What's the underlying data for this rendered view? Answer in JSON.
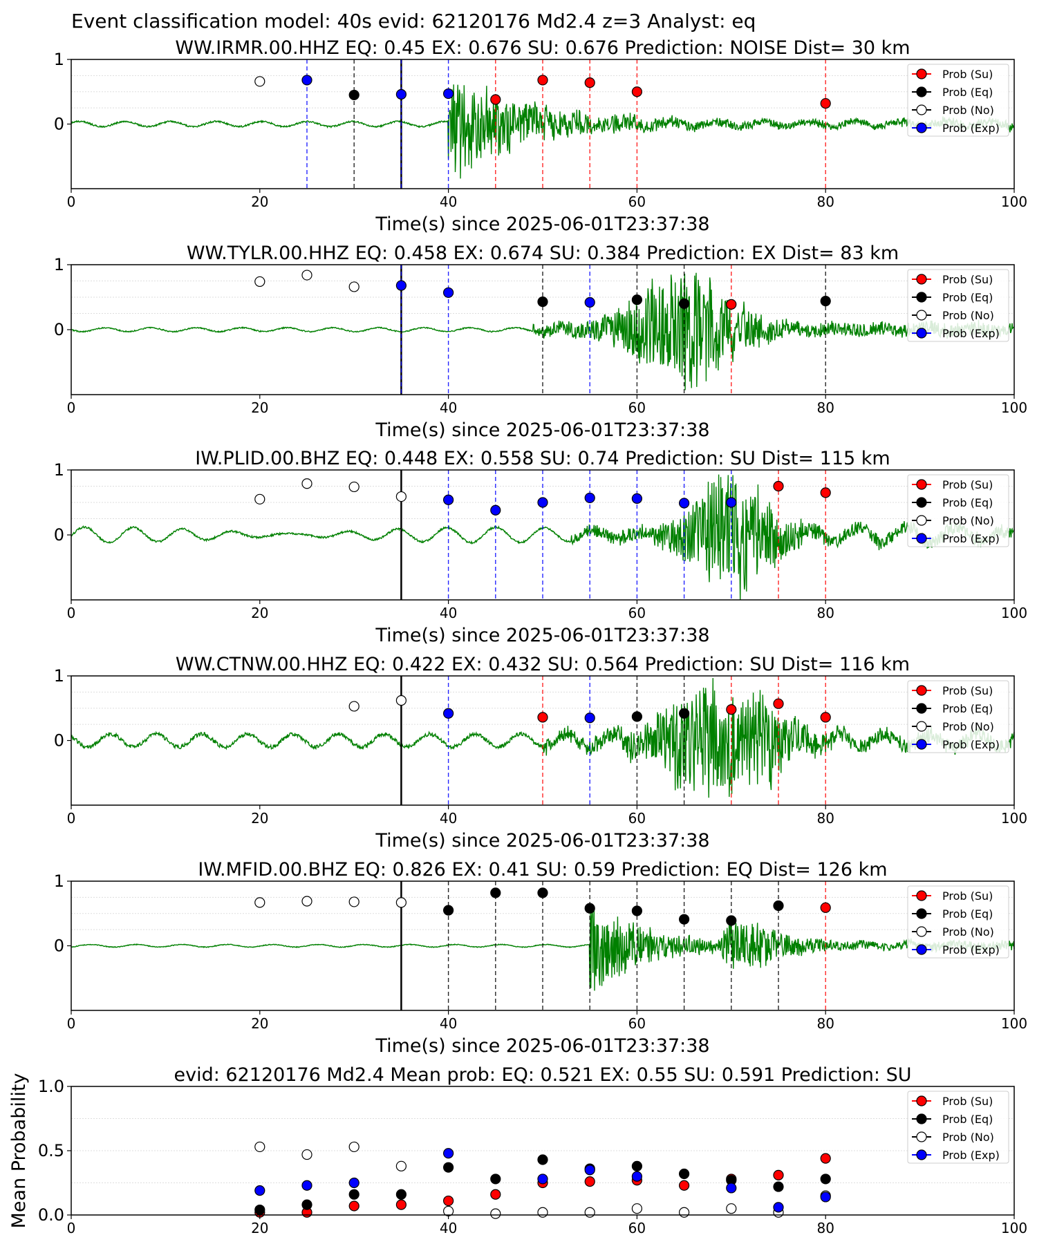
{
  "figure": {
    "title": "Event classification model: 40s evid: 62120176 Md2.4 z=3 Analyst: eq",
    "colors": {
      "su": "#ff0000",
      "eq": "#000000",
      "no": "#ffffff",
      "exp": "#0000ff",
      "waveform": "#008000",
      "su_line": "#ff0000",
      "eq_line": "#000000",
      "exp_line": "#0000ff",
      "origin_line": "#000000"
    }
  },
  "chart_data": [
    {
      "type": "scatter",
      "title": "WW.IRMR.00.HHZ   EQ: 0.45   EX: 0.676   SU: 0.676   Prediction: NOISE    Dist= 30 km",
      "xlabel": "Time(s) since 2025-06-01T23:37:38",
      "xlim": [
        0,
        100
      ],
      "ylim": [
        -1,
        1
      ],
      "xticks": [
        "0",
        "20",
        "40",
        "60",
        "80",
        "100"
      ],
      "yticks": [
        "1",
        "0"
      ],
      "legend": [
        "Prob (Su)",
        "Prob (Eq)",
        "Prob (No)",
        "Prob (Exp)"
      ],
      "legend_position": "top-right",
      "origin_time": 35,
      "waveform": {
        "style": "noise-then-burst",
        "onset": 40,
        "amp": 0.95,
        "pre_amp": 0.04,
        "decay": 8
      },
      "points": [
        {
          "x": 20,
          "y": 0.66,
          "class": "No"
        },
        {
          "x": 25,
          "y": 0.68,
          "class": "Exp"
        },
        {
          "x": 30,
          "y": 0.45,
          "class": "Eq"
        },
        {
          "x": 35,
          "y": 0.46,
          "class": "Exp"
        },
        {
          "x": 40,
          "y": 0.47,
          "class": "Exp"
        },
        {
          "x": 45,
          "y": 0.38,
          "class": "Su"
        },
        {
          "x": 50,
          "y": 0.68,
          "class": "Su"
        },
        {
          "x": 55,
          "y": 0.64,
          "class": "Su"
        },
        {
          "x": 60,
          "y": 0.5,
          "class": "Su"
        },
        {
          "x": 80,
          "y": 0.32,
          "class": "Su"
        }
      ]
    },
    {
      "type": "scatter",
      "title": "WW.TYLR.00.HHZ   EQ: 0.458   EX: 0.674   SU: 0.384   Prediction: EX    Dist= 83 km",
      "xlabel": "Time(s) since 2025-06-01T23:37:38",
      "xlim": [
        0,
        100
      ],
      "ylim": [
        -1,
        1
      ],
      "xticks": [
        "0",
        "20",
        "40",
        "60",
        "80",
        "100"
      ],
      "yticks": [
        "1",
        "0"
      ],
      "legend": [
        "Prob (Su)",
        "Prob (Eq)",
        "Prob (No)",
        "Prob (Exp)"
      ],
      "legend_position": "top-right",
      "origin_time": 35,
      "waveform": {
        "style": "emergent",
        "onset": 49,
        "amp": 1.0,
        "pre_amp": 0.03,
        "peak": 65,
        "decay": 6
      },
      "points": [
        {
          "x": 20,
          "y": 0.74,
          "class": "No"
        },
        {
          "x": 25,
          "y": 0.84,
          "class": "No"
        },
        {
          "x": 30,
          "y": 0.66,
          "class": "No"
        },
        {
          "x": 35,
          "y": 0.68,
          "class": "Exp"
        },
        {
          "x": 40,
          "y": 0.57,
          "class": "Exp"
        },
        {
          "x": 50,
          "y": 0.43,
          "class": "Eq"
        },
        {
          "x": 55,
          "y": 0.42,
          "class": "Exp"
        },
        {
          "x": 60,
          "y": 0.46,
          "class": "Eq"
        },
        {
          "x": 65,
          "y": 0.4,
          "class": "Eq"
        },
        {
          "x": 70,
          "y": 0.39,
          "class": "Su"
        },
        {
          "x": 80,
          "y": 0.44,
          "class": "Eq"
        }
      ]
    },
    {
      "type": "scatter",
      "title": "IW.PLID.00.BHZ   EQ: 0.448   EX: 0.558   SU: 0.74   Prediction: SU    Dist= 115 km",
      "xlabel": "Time(s) since 2025-06-01T23:37:38",
      "xlim": [
        0,
        100
      ],
      "ylim": [
        -1,
        1
      ],
      "xticks": [
        "0",
        "20",
        "40",
        "60",
        "80",
        "100"
      ],
      "yticks": [
        "1",
        "0"
      ],
      "legend": [
        "Prob (Su)",
        "Prob (Eq)",
        "Prob (No)",
        "Prob (Exp)"
      ],
      "legend_position": "top-right",
      "origin_time": 35,
      "waveform": {
        "style": "emergent",
        "onset": 53,
        "amp": 1.0,
        "pre_amp": 0.05,
        "peak": 70,
        "decay": 5,
        "swell": 0.07
      },
      "points": [
        {
          "x": 20,
          "y": 0.55,
          "class": "No"
        },
        {
          "x": 25,
          "y": 0.79,
          "class": "No"
        },
        {
          "x": 30,
          "y": 0.74,
          "class": "No"
        },
        {
          "x": 35,
          "y": 0.59,
          "class": "No"
        },
        {
          "x": 40,
          "y": 0.54,
          "class": "Exp"
        },
        {
          "x": 45,
          "y": 0.38,
          "class": "Exp"
        },
        {
          "x": 50,
          "y": 0.5,
          "class": "Exp"
        },
        {
          "x": 55,
          "y": 0.57,
          "class": "Exp"
        },
        {
          "x": 60,
          "y": 0.56,
          "class": "Exp"
        },
        {
          "x": 65,
          "y": 0.49,
          "class": "Exp"
        },
        {
          "x": 70,
          "y": 0.5,
          "class": "Exp"
        },
        {
          "x": 75,
          "y": 0.75,
          "class": "Su"
        },
        {
          "x": 80,
          "y": 0.65,
          "class": "Su"
        }
      ]
    },
    {
      "type": "scatter",
      "title": "WW.CTNW.00.HHZ   EQ: 0.422   EX: 0.432   SU: 0.564   Prediction: SU    Dist= 116 km",
      "xlabel": "Time(s) since 2025-06-01T23:37:38",
      "xlim": [
        0,
        100
      ],
      "ylim": [
        -1,
        1
      ],
      "xticks": [
        "0",
        "20",
        "40",
        "60",
        "80",
        "100"
      ],
      "yticks": [
        "1",
        "0"
      ],
      "legend": [
        "Prob (Su)",
        "Prob (Eq)",
        "Prob (No)",
        "Prob (Exp)"
      ],
      "legend_position": "top-right",
      "origin_time": 35,
      "waveform": {
        "style": "emergent",
        "onset": 50,
        "amp": 1.0,
        "pre_amp": 0.1,
        "peak": 69,
        "decay": 7
      },
      "points": [
        {
          "x": 30,
          "y": 0.53,
          "class": "No"
        },
        {
          "x": 35,
          "y": 0.62,
          "class": "No"
        },
        {
          "x": 40,
          "y": 0.42,
          "class": "Exp"
        },
        {
          "x": 50,
          "y": 0.36,
          "class": "Su"
        },
        {
          "x": 55,
          "y": 0.35,
          "class": "Exp"
        },
        {
          "x": 60,
          "y": 0.37,
          "class": "Eq"
        },
        {
          "x": 65,
          "y": 0.42,
          "class": "Eq"
        },
        {
          "x": 70,
          "y": 0.48,
          "class": "Su"
        },
        {
          "x": 75,
          "y": 0.57,
          "class": "Su"
        },
        {
          "x": 80,
          "y": 0.36,
          "class": "Su"
        }
      ]
    },
    {
      "type": "scatter",
      "title": "IW.MFID.00.BHZ   EQ: 0.826   EX: 0.41   SU: 0.59   Prediction: EQ    Dist= 126 km",
      "xlabel": "Time(s) since 2025-06-01T23:37:38",
      "xlim": [
        0,
        100
      ],
      "ylim": [
        -1,
        1
      ],
      "xticks": [
        "0",
        "20",
        "40",
        "60",
        "80",
        "100"
      ],
      "yticks": [
        "1",
        "0"
      ],
      "legend": [
        "Prob (Su)",
        "Prob (Eq)",
        "Prob (No)",
        "Prob (Exp)"
      ],
      "legend_position": "top-right",
      "origin_time": 35,
      "waveform": {
        "style": "two-bursts",
        "onset": 55,
        "amp": 0.9,
        "pre_amp": 0.02,
        "decay": 5,
        "onset2": 69,
        "amp2": 0.5
      },
      "points": [
        {
          "x": 20,
          "y": 0.67,
          "class": "No"
        },
        {
          "x": 25,
          "y": 0.69,
          "class": "No"
        },
        {
          "x": 30,
          "y": 0.68,
          "class": "No"
        },
        {
          "x": 35,
          "y": 0.67,
          "class": "No"
        },
        {
          "x": 40,
          "y": 0.55,
          "class": "Eq"
        },
        {
          "x": 45,
          "y": 0.82,
          "class": "Eq"
        },
        {
          "x": 50,
          "y": 0.82,
          "class": "Eq"
        },
        {
          "x": 55,
          "y": 0.58,
          "class": "Eq"
        },
        {
          "x": 60,
          "y": 0.54,
          "class": "Eq"
        },
        {
          "x": 65,
          "y": 0.41,
          "class": "Eq"
        },
        {
          "x": 70,
          "y": 0.39,
          "class": "Eq"
        },
        {
          "x": 75,
          "y": 0.62,
          "class": "Eq"
        },
        {
          "x": 80,
          "y": 0.59,
          "class": "Su"
        }
      ]
    },
    {
      "type": "scatter",
      "title": "evid: 62120176   Md2.4   Mean prob:    EQ: 0.521   EX: 0.55   SU: 0.591   Prediction: SU",
      "xlabel": "",
      "ylabel": "Mean Probability",
      "xlim": [
        0,
        100
      ],
      "ylim": [
        0,
        1
      ],
      "xticks": [
        "0",
        "20",
        "40",
        "60",
        "80",
        "100"
      ],
      "yticks": [
        "1.0",
        "0.5",
        "0.0"
      ],
      "legend": [
        "Prob (Su)",
        "Prob (Eq)",
        "Prob (No)",
        "Prob (Exp)"
      ],
      "legend_position": "top-right",
      "x": [
        20,
        25,
        30,
        35,
        40,
        45,
        50,
        55,
        60,
        65,
        70,
        75,
        80
      ],
      "series": [
        {
          "name": "Prob (Su)",
          "class": "Su",
          "values": [
            0.02,
            0.02,
            0.07,
            0.08,
            0.11,
            0.16,
            0.25,
            0.26,
            0.27,
            0.23,
            0.28,
            0.31,
            0.44
          ]
        },
        {
          "name": "Prob (Eq)",
          "class": "Eq",
          "values": [
            0.04,
            0.08,
            0.16,
            0.16,
            0.37,
            0.28,
            0.43,
            0.36,
            0.38,
            0.32,
            0.27,
            0.22,
            0.28
          ]
        },
        {
          "name": "Prob (No)",
          "class": "No",
          "values": [
            0.53,
            0.47,
            0.53,
            0.38,
            0.03,
            0.01,
            0.02,
            0.02,
            0.05,
            0.02,
            0.05,
            0.02,
            0.15
          ]
        },
        {
          "name": "Prob (Exp)",
          "class": "Exp",
          "values": [
            0.19,
            0.23,
            0.25,
            null,
            0.48,
            null,
            0.28,
            0.35,
            0.3,
            null,
            0.21,
            0.06,
            0.14
          ]
        }
      ]
    }
  ]
}
